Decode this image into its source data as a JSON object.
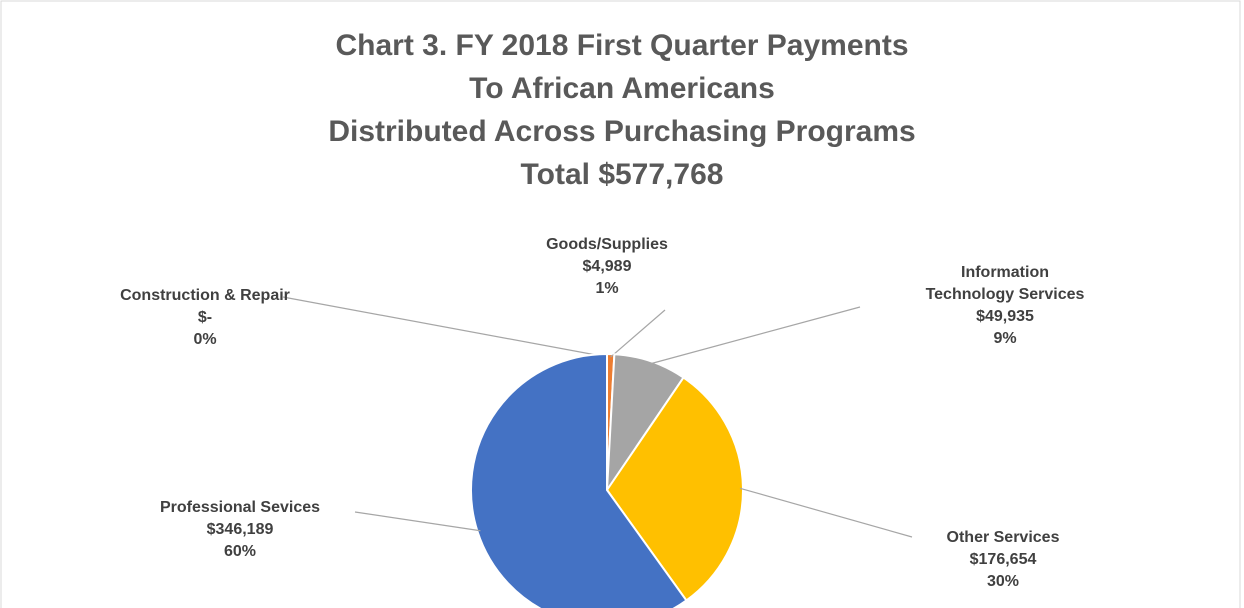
{
  "chart_data": {
    "type": "pie",
    "title": [
      "Chart 3. FY 2018 First Quarter Payments",
      "To African Americans",
      "Distributed Across Purchasing Programs",
      "Total $577,768"
    ],
    "categories": [
      "Construction & Repair",
      "Goods/Supplies",
      "Information Technology Services",
      "Other Services",
      "Professional Sevices"
    ],
    "values": [
      0,
      4989,
      49935,
      176654,
      346189
    ],
    "value_labels": [
      "$-",
      "$4,989",
      "$49,935",
      "$176,654",
      "$346,189"
    ],
    "percents": [
      0,
      1,
      9,
      30,
      60
    ],
    "percent_labels": [
      "0%",
      "1%",
      "9%",
      "30%",
      "60%"
    ],
    "colors": [
      "#4472c4",
      "#ed7d31",
      "#a5a5a5",
      "#ffc000",
      "#4472c4"
    ]
  }
}
